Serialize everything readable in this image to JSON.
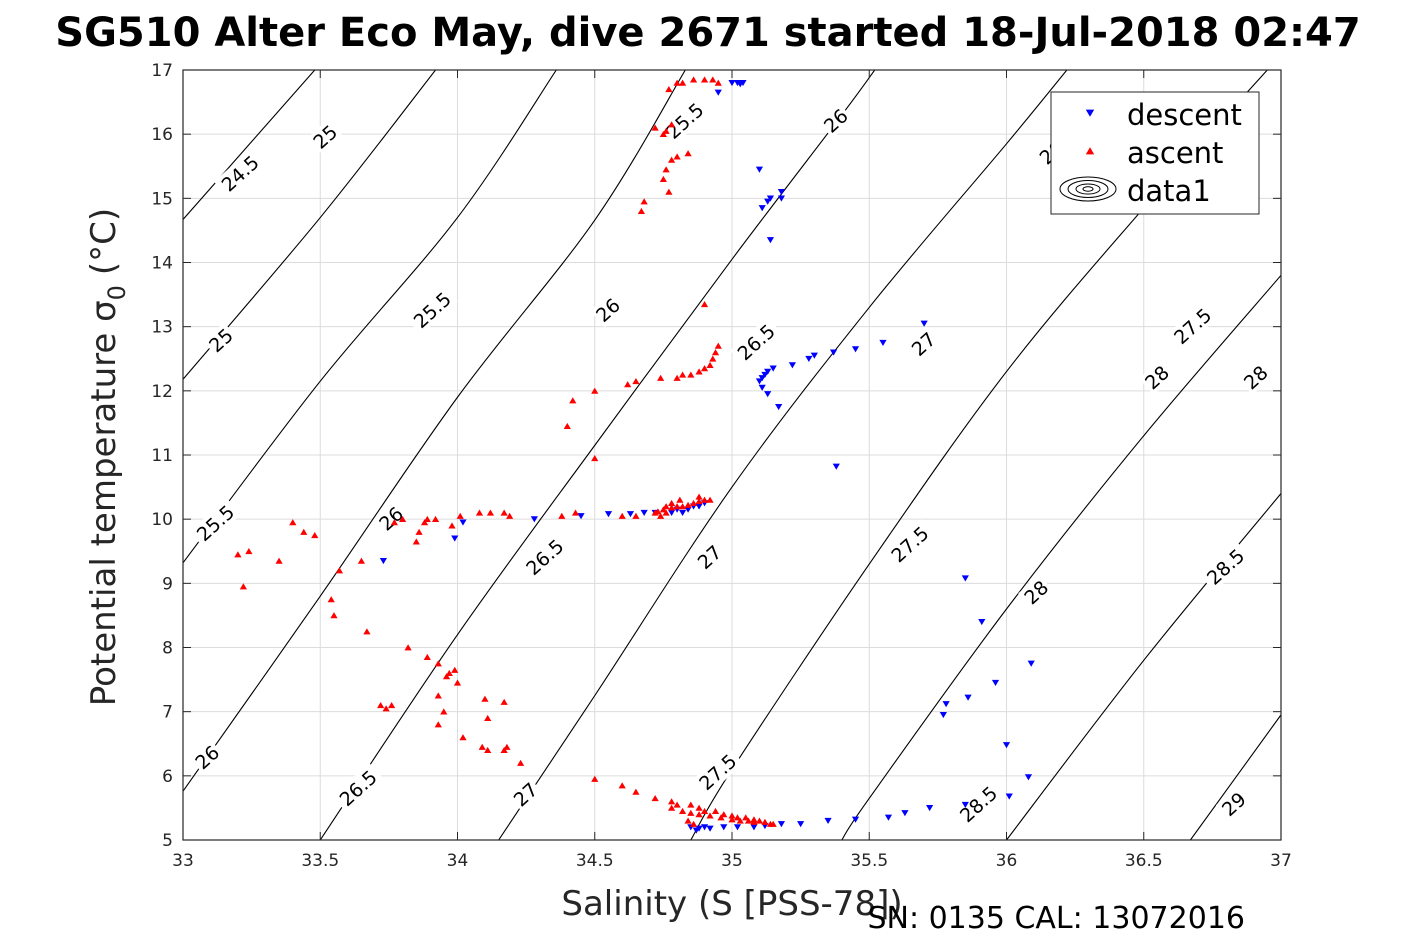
{
  "title": "SG510 Alter Eco May, dive 2671 started 18-Jul-2018 02:47",
  "footer": "SN: 0135  CAL: 13072016",
  "chart_data": {
    "type": "scatter",
    "xlabel": "Salinity (S [PSS-78])",
    "ylabel_main": "Potential temperature σ",
    "ylabel_sub": "0",
    "ylabel_unit": "(°C)",
    "xlim": [
      33,
      37
    ],
    "ylim": [
      5,
      17
    ],
    "x_ticks": [
      "33",
      "33.5",
      "34",
      "34.5",
      "35",
      "35.5",
      "36",
      "36.5",
      "37"
    ],
    "y_ticks": [
      "5",
      "6",
      "7",
      "8",
      "9",
      "10",
      "11",
      "12",
      "13",
      "14",
      "15",
      "16",
      "17"
    ],
    "grid": true,
    "legend": {
      "position": "top-right",
      "entries": [
        {
          "label": "descent",
          "marker": "triangle-down",
          "color": "#0000ff"
        },
        {
          "label": "ascent",
          "marker": "triangle-up",
          "color": "#ff0000"
        },
        {
          "label": "data1",
          "marker": "contour",
          "color": "#000000"
        }
      ]
    },
    "contours": [
      {
        "level": 24.5,
        "label": "24.5",
        "points": [
          [
            33.0,
            14.67
          ],
          [
            33.48,
            17.0
          ]
        ]
      },
      {
        "level": 25.0,
        "label": "25",
        "points": [
          [
            33.0,
            12.18
          ],
          [
            33.5,
            14.7
          ],
          [
            33.92,
            17.0
          ]
        ]
      },
      {
        "level": 25.5,
        "label": "25.5",
        "points": [
          [
            33.0,
            9.32
          ],
          [
            33.5,
            12.15
          ],
          [
            34.0,
            14.7
          ],
          [
            34.36,
            17.0
          ]
        ]
      },
      {
        "level": 26.0,
        "label": "26",
        "points": [
          [
            33.0,
            5.76
          ],
          [
            33.5,
            8.8
          ],
          [
            34.0,
            11.9
          ],
          [
            34.5,
            14.66
          ],
          [
            34.83,
            17.0
          ]
        ]
      },
      {
        "level": 26.5,
        "label": "26.5",
        "points": [
          [
            33.5,
            5.0
          ],
          [
            34.0,
            8.2
          ],
          [
            34.5,
            11.15
          ],
          [
            35.0,
            14.05
          ],
          [
            35.4,
            16.3
          ],
          [
            35.52,
            17.0
          ]
        ]
      },
      {
        "level": 27.0,
        "label": "27",
        "points": [
          [
            34.15,
            5.0
          ],
          [
            34.5,
            7.25
          ],
          [
            35.0,
            10.5
          ],
          [
            35.5,
            13.3
          ],
          [
            36.0,
            15.85
          ],
          [
            36.22,
            17.0
          ]
        ]
      },
      {
        "level": 27.5,
        "label": "27.5",
        "points": [
          [
            34.85,
            5.0
          ],
          [
            35.0,
            6.1
          ],
          [
            35.5,
            9.3
          ],
          [
            36.0,
            12.3
          ],
          [
            36.5,
            14.85
          ],
          [
            36.95,
            17.0
          ]
        ]
      },
      {
        "level": 28.0,
        "label": "28",
        "points": [
          [
            35.4,
            5.0
          ],
          [
            35.5,
            5.65
          ],
          [
            36.0,
            8.6
          ],
          [
            36.5,
            11.3
          ],
          [
            37.0,
            13.8
          ]
        ]
      },
      {
        "level": 28.5,
        "label": "28.5",
        "points": [
          [
            36.0,
            5.0
          ],
          [
            36.5,
            7.8
          ],
          [
            37.0,
            10.4
          ]
        ]
      },
      {
        "level": 29.0,
        "label": "29",
        "points": [
          [
            36.67,
            5.0
          ],
          [
            37.0,
            6.95
          ]
        ]
      }
    ],
    "contour_labels": [
      {
        "text": "24.5",
        "x": 33.21,
        "y": 15.38
      },
      {
        "text": "25",
        "x": 33.52,
        "y": 15.95
      },
      {
        "text": "25",
        "x": 33.14,
        "y": 12.78
      },
      {
        "text": "25.5",
        "x": 34.83,
        "y": 16.2
      },
      {
        "text": "25.5",
        "x": 33.91,
        "y": 13.25
      },
      {
        "text": "25.5",
        "x": 33.12,
        "y": 9.93
      },
      {
        "text": "26",
        "x": 35.38,
        "y": 16.2
      },
      {
        "text": "26",
        "x": 34.55,
        "y": 13.25
      },
      {
        "text": "26",
        "x": 33.76,
        "y": 10.0
      },
      {
        "text": "26",
        "x": 33.09,
        "y": 6.28
      },
      {
        "text": "26.5",
        "x": 36.19,
        "y": 15.8
      },
      {
        "text": "26.5",
        "x": 35.09,
        "y": 12.75
      },
      {
        "text": "26.5",
        "x": 34.32,
        "y": 9.4
      },
      {
        "text": "26.5",
        "x": 33.64,
        "y": 5.8
      },
      {
        "text": "27",
        "x": 35.7,
        "y": 12.72
      },
      {
        "text": "27",
        "x": 34.92,
        "y": 9.4
      },
      {
        "text": "27",
        "x": 34.25,
        "y": 5.7
      },
      {
        "text": "27.5",
        "x": 36.68,
        "y": 13.0
      },
      {
        "text": "27.5",
        "x": 35.65,
        "y": 9.6
      },
      {
        "text": "27.5",
        "x": 34.95,
        "y": 6.05
      },
      {
        "text": "28",
        "x": 36.91,
        "y": 12.2
      },
      {
        "text": "28",
        "x": 36.11,
        "y": 8.85
      },
      {
        "text": "28",
        "x": 36.55,
        "y": 12.2
      },
      {
        "text": "28.5",
        "x": 35.9,
        "y": 5.55
      },
      {
        "text": "28.5",
        "x": 36.8,
        "y": 9.25
      },
      {
        "text": "29",
        "x": 36.83,
        "y": 5.55
      }
    ],
    "series": [
      {
        "name": "descent",
        "marker": "triangle-down",
        "color": "#0000ff",
        "points": [
          [
            34.95,
            16.65
          ],
          [
            35.0,
            16.8
          ],
          [
            35.02,
            16.8
          ],
          [
            35.03,
            16.78
          ],
          [
            35.04,
            16.8
          ],
          [
            35.1,
            15.45
          ],
          [
            35.11,
            14.85
          ],
          [
            35.13,
            14.95
          ],
          [
            35.14,
            15.0
          ],
          [
            35.18,
            15.0
          ],
          [
            35.18,
            15.1
          ],
          [
            35.14,
            14.35
          ],
          [
            35.7,
            13.05
          ],
          [
            35.55,
            12.75
          ],
          [
            35.45,
            12.65
          ],
          [
            35.37,
            12.6
          ],
          [
            35.3,
            12.55
          ],
          [
            35.28,
            12.5
          ],
          [
            35.22,
            12.4
          ],
          [
            35.15,
            12.35
          ],
          [
            35.13,
            12.3
          ],
          [
            35.12,
            12.25
          ],
          [
            35.11,
            12.2
          ],
          [
            35.1,
            12.15
          ],
          [
            35.11,
            12.05
          ],
          [
            35.13,
            11.95
          ],
          [
            35.17,
            11.75
          ],
          [
            35.38,
            10.82
          ],
          [
            33.73,
            9.35
          ],
          [
            33.99,
            9.7
          ],
          [
            34.02,
            9.95
          ],
          [
            34.28,
            10.0
          ],
          [
            34.45,
            10.05
          ],
          [
            34.55,
            10.08
          ],
          [
            34.63,
            10.08
          ],
          [
            34.68,
            10.1
          ],
          [
            34.72,
            10.1
          ],
          [
            34.78,
            10.1
          ],
          [
            34.8,
            10.15
          ],
          [
            34.82,
            10.1
          ],
          [
            34.84,
            10.15
          ],
          [
            34.86,
            10.2
          ],
          [
            34.88,
            10.2
          ],
          [
            34.9,
            10.25
          ],
          [
            35.85,
            9.08
          ],
          [
            35.91,
            8.4
          ],
          [
            36.09,
            7.75
          ],
          [
            35.96,
            7.45
          ],
          [
            35.86,
            7.22
          ],
          [
            35.78,
            7.12
          ],
          [
            35.77,
            6.95
          ],
          [
            36.0,
            6.48
          ],
          [
            36.08,
            5.98
          ],
          [
            36.01,
            5.68
          ],
          [
            35.85,
            5.55
          ],
          [
            35.72,
            5.5
          ],
          [
            35.63,
            5.42
          ],
          [
            35.57,
            5.35
          ],
          [
            35.45,
            5.32
          ],
          [
            35.35,
            5.3
          ],
          [
            35.25,
            5.25
          ],
          [
            35.18,
            5.25
          ],
          [
            35.12,
            5.22
          ],
          [
            35.08,
            5.2
          ],
          [
            35.02,
            5.2
          ],
          [
            34.97,
            5.2
          ],
          [
            34.92,
            5.18
          ],
          [
            34.9,
            5.2
          ],
          [
            34.88,
            5.18
          ],
          [
            34.87,
            5.15
          ],
          [
            34.85,
            5.2
          ]
        ]
      },
      {
        "name": "ascent",
        "marker": "triangle-up",
        "color": "#ff0000",
        "points": [
          [
            34.82,
            16.8
          ],
          [
            34.8,
            16.8
          ],
          [
            34.77,
            16.7
          ],
          [
            34.86,
            16.85
          ],
          [
            34.9,
            16.85
          ],
          [
            34.93,
            16.85
          ],
          [
            34.95,
            16.8
          ],
          [
            34.78,
            16.15
          ],
          [
            34.76,
            16.05
          ],
          [
            34.75,
            16.0
          ],
          [
            34.72,
            16.1
          ],
          [
            34.78,
            15.6
          ],
          [
            34.8,
            15.65
          ],
          [
            34.84,
            15.7
          ],
          [
            34.76,
            15.45
          ],
          [
            34.75,
            15.3
          ],
          [
            34.77,
            15.1
          ],
          [
            34.68,
            14.95
          ],
          [
            34.67,
            14.8
          ],
          [
            34.9,
            13.35
          ],
          [
            34.95,
            12.7
          ],
          [
            34.94,
            12.6
          ],
          [
            34.93,
            12.5
          ],
          [
            34.92,
            12.4
          ],
          [
            34.9,
            12.35
          ],
          [
            34.88,
            12.3
          ],
          [
            34.85,
            12.25
          ],
          [
            34.82,
            12.25
          ],
          [
            34.8,
            12.2
          ],
          [
            34.74,
            12.2
          ],
          [
            34.65,
            12.15
          ],
          [
            34.62,
            12.1
          ],
          [
            34.5,
            12.0
          ],
          [
            34.42,
            11.85
          ],
          [
            34.4,
            11.45
          ],
          [
            34.5,
            10.95
          ],
          [
            34.88,
            10.35
          ],
          [
            34.92,
            10.3
          ],
          [
            34.9,
            10.3
          ],
          [
            34.88,
            10.28
          ],
          [
            34.86,
            10.25
          ],
          [
            34.84,
            10.22
          ],
          [
            34.82,
            10.2
          ],
          [
            34.8,
            10.2
          ],
          [
            34.78,
            10.18
          ],
          [
            34.76,
            10.2
          ],
          [
            34.75,
            10.15
          ],
          [
            34.73,
            10.12
          ],
          [
            34.72,
            10.1
          ],
          [
            34.74,
            10.05
          ],
          [
            34.76,
            10.1
          ],
          [
            34.81,
            10.3
          ],
          [
            34.78,
            10.25
          ],
          [
            34.65,
            10.05
          ],
          [
            34.6,
            10.05
          ],
          [
            34.43,
            10.1
          ],
          [
            34.38,
            10.05
          ],
          [
            34.17,
            10.1
          ],
          [
            34.19,
            10.05
          ],
          [
            34.12,
            10.1
          ],
          [
            34.08,
            10.1
          ],
          [
            34.01,
            10.05
          ],
          [
            33.98,
            9.9
          ],
          [
            33.92,
            10.0
          ],
          [
            33.89,
            10.0
          ],
          [
            33.88,
            9.95
          ],
          [
            33.86,
            9.8
          ],
          [
            33.85,
            9.65
          ],
          [
            33.8,
            10.0
          ],
          [
            33.77,
            9.95
          ],
          [
            33.4,
            9.95
          ],
          [
            33.44,
            9.8
          ],
          [
            33.48,
            9.75
          ],
          [
            33.35,
            9.35
          ],
          [
            33.24,
            9.5
          ],
          [
            33.2,
            9.45
          ],
          [
            33.22,
            8.95
          ],
          [
            33.57,
            9.2
          ],
          [
            33.65,
            9.35
          ],
          [
            33.54,
            8.75
          ],
          [
            33.55,
            8.5
          ],
          [
            33.67,
            8.25
          ],
          [
            33.82,
            8.0
          ],
          [
            33.89,
            7.85
          ],
          [
            33.93,
            7.75
          ],
          [
            33.96,
            7.55
          ],
          [
            33.97,
            7.6
          ],
          [
            33.99,
            7.65
          ],
          [
            34.0,
            7.45
          ],
          [
            33.93,
            7.25
          ],
          [
            33.95,
            7.0
          ],
          [
            33.93,
            6.8
          ],
          [
            33.72,
            7.1
          ],
          [
            33.74,
            7.05
          ],
          [
            33.76,
            7.1
          ],
          [
            34.1,
            7.2
          ],
          [
            34.17,
            7.15
          ],
          [
            34.11,
            6.9
          ],
          [
            34.02,
            6.6
          ],
          [
            34.09,
            6.45
          ],
          [
            34.11,
            6.4
          ],
          [
            34.17,
            6.4
          ],
          [
            34.18,
            6.45
          ],
          [
            34.23,
            6.2
          ],
          [
            34.5,
            5.95
          ],
          [
            34.6,
            5.85
          ],
          [
            34.65,
            5.75
          ],
          [
            34.72,
            5.65
          ],
          [
            34.78,
            5.6
          ],
          [
            34.8,
            5.55
          ],
          [
            34.85,
            5.55
          ],
          [
            34.88,
            5.5
          ],
          [
            34.9,
            5.45
          ],
          [
            34.94,
            5.45
          ],
          [
            34.97,
            5.4
          ],
          [
            35.0,
            5.38
          ],
          [
            35.02,
            5.35
          ],
          [
            35.05,
            5.35
          ],
          [
            35.08,
            5.32
          ],
          [
            35.1,
            5.3
          ],
          [
            35.12,
            5.28
          ],
          [
            35.14,
            5.25
          ],
          [
            35.15,
            5.25
          ],
          [
            34.82,
            5.45
          ],
          [
            34.85,
            5.42
          ],
          [
            34.88,
            5.4
          ],
          [
            34.92,
            5.38
          ],
          [
            34.96,
            5.35
          ],
          [
            35.0,
            5.32
          ],
          [
            35.03,
            5.3
          ],
          [
            35.06,
            5.3
          ],
          [
            35.08,
            5.28
          ],
          [
            34.78,
            5.5
          ],
          [
            34.84,
            5.3
          ],
          [
            34.86,
            5.25
          ]
        ]
      }
    ]
  }
}
